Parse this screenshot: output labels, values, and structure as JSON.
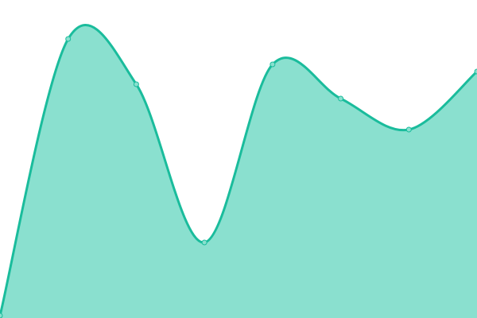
{
  "chart_data": {
    "type": "area",
    "title": "",
    "xlabel": "",
    "ylabel": "",
    "x": [
      0,
      1,
      2,
      3,
      4,
      5,
      6,
      7
    ],
    "values": [
      3,
      351,
      294,
      95,
      319,
      276,
      237,
      310
    ],
    "ylim": [
      0,
      400
    ],
    "grid": false,
    "axes_visible": false,
    "curve": "smooth",
    "markers": true,
    "colors": {
      "fill": "#8ae0cf",
      "line": "#1abc9c",
      "marker_fill": "#8ae0cf"
    }
  }
}
